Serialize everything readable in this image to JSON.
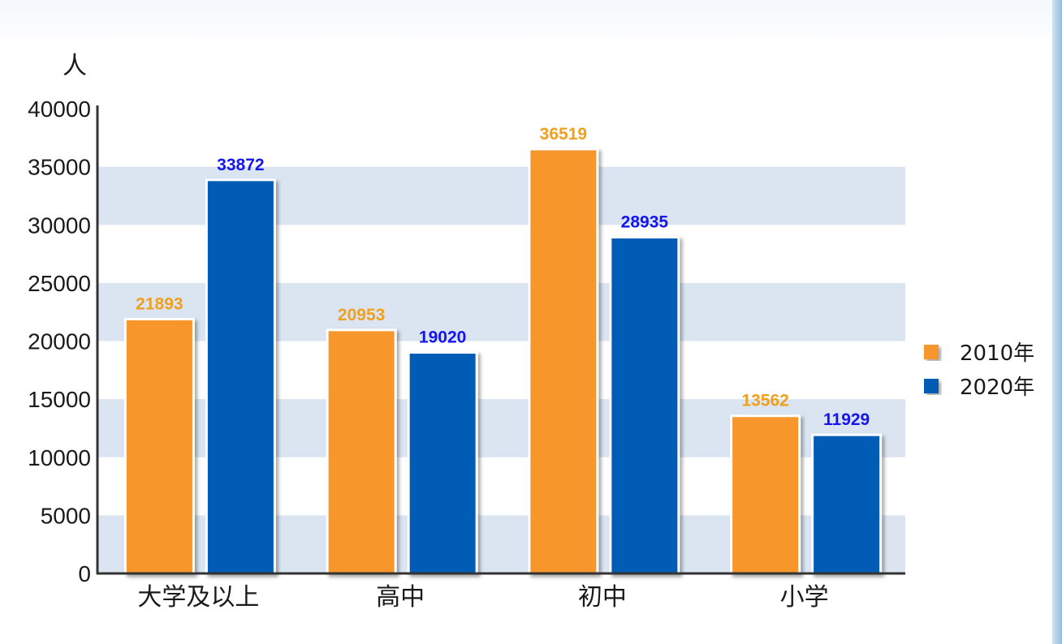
{
  "chart_data": {
    "type": "bar",
    "categories": [
      "大学及以上",
      "高中",
      "初中",
      "小学"
    ],
    "series": [
      {
        "name": "2010年",
        "values": [
          21893,
          20953,
          36519,
          13562
        ],
        "color": "#f7962c",
        "label_color": "#f0a020"
      },
      {
        "name": "2020年",
        "values": [
          33872,
          19020,
          28935,
          11929
        ],
        "color": "#005bb5",
        "label_color": "#1515ee"
      }
    ],
    "ylabel": "人",
    "ylim": [
      0,
      40000
    ],
    "yticks": [
      "0",
      "5000",
      "10000",
      "15000",
      "20000",
      "25000",
      "30000",
      "35000",
      "40000"
    ],
    "band_color": "#dbe5f1",
    "grid": "alternating horizontal bands",
    "legend": "right"
  }
}
